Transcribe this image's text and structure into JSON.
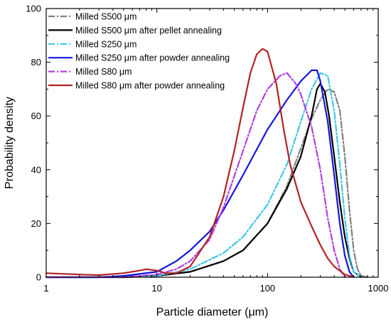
{
  "chart_data": {
    "type": "line",
    "title": "",
    "xlabel": "Particle diameter (μm)",
    "ylabel": "Probability density",
    "xscale": "log",
    "xlim": [
      1,
      1000
    ],
    "ylim": [
      0,
      100
    ],
    "xticks": [
      1,
      10,
      100,
      1000
    ],
    "xtick_labels": [
      "1",
      "10",
      "100",
      "1000"
    ],
    "yticks": [
      0,
      20,
      40,
      60,
      80,
      100
    ],
    "ytick_labels": [
      "0",
      "20",
      "40",
      "60",
      "80",
      "100"
    ],
    "grid": false,
    "legend_position": "top-left",
    "series": [
      {
        "name": "Milled S500 μm",
        "color": "#808080",
        "dash": "dash-dot",
        "x": [
          1,
          5,
          10,
          20,
          40,
          60,
          100,
          150,
          200,
          250,
          300,
          350,
          400,
          450,
          500,
          550,
          600,
          650,
          700,
          800
        ],
        "y": [
          0,
          0,
          0.5,
          2,
          6,
          10,
          20,
          34,
          48,
          59,
          66,
          70,
          69,
          62,
          45,
          25,
          10,
          3,
          0.5,
          0
        ]
      },
      {
        "name": "Milled S500 μm after pellet annealing",
        "color": "#000000",
        "dash": "solid",
        "x": [
          1,
          5,
          10,
          20,
          40,
          60,
          100,
          150,
          200,
          250,
          280,
          300,
          330,
          360,
          400,
          450,
          500,
          550,
          600,
          700
        ],
        "y": [
          0,
          0,
          0.5,
          2,
          6,
          10,
          20,
          33,
          45,
          60,
          70,
          72,
          69,
          60,
          45,
          28,
          15,
          7,
          2,
          0
        ]
      },
      {
        "name": "Milled S250 μm",
        "color": "#3fc8e8",
        "dash": "dash-dot",
        "x": [
          1,
          5,
          10,
          20,
          40,
          60,
          100,
          150,
          200,
          250,
          300,
          350,
          400,
          450,
          500,
          550,
          600,
          700
        ],
        "y": [
          0,
          0,
          0.5,
          3,
          9,
          15,
          27,
          42,
          58,
          70,
          76,
          75,
          62,
          42,
          22,
          8,
          2,
          0
        ]
      },
      {
        "name": "Milled S250 μm after powder annealing",
        "color": "#1414e0",
        "dash": "solid",
        "x": [
          1,
          3,
          5,
          10,
          15,
          20,
          30,
          40,
          60,
          100,
          150,
          200,
          250,
          280,
          300,
          350,
          400,
          450,
          500,
          550,
          600
        ],
        "y": [
          0,
          0,
          0.5,
          2,
          6,
          10,
          17,
          25,
          38,
          55,
          66,
          73,
          77,
          77,
          73,
          58,
          38,
          20,
          8,
          2,
          0
        ]
      },
      {
        "name": "Milled S80 μm",
        "color": "#b23ee6",
        "dash": "dash-dot",
        "x": [
          1,
          5,
          10,
          15,
          20,
          30,
          40,
          60,
          80,
          100,
          130,
          150,
          180,
          200,
          250,
          300,
          350,
          400,
          450,
          500
        ],
        "y": [
          0,
          0,
          1,
          3,
          6,
          14,
          26,
          47,
          62,
          70,
          75,
          76,
          72,
          68,
          56,
          40,
          22,
          10,
          3,
          0
        ]
      },
      {
        "name": "Milled S80 μm after powder annealing",
        "color": "#b22222",
        "dash": "solid",
        "x": [
          1,
          2,
          3,
          5,
          7,
          8,
          10,
          12,
          15,
          20,
          30,
          40,
          50,
          60,
          70,
          80,
          90,
          100,
          120,
          140,
          160,
          200,
          250,
          300,
          350,
          400,
          500,
          600
        ],
        "y": [
          1.5,
          1,
          0.8,
          1.5,
          2.5,
          3,
          2.5,
          1.5,
          1.5,
          4,
          15,
          30,
          47,
          63,
          76,
          83,
          85,
          84,
          72,
          55,
          42,
          28,
          19,
          12,
          7,
          4,
          1,
          0
        ]
      }
    ]
  }
}
